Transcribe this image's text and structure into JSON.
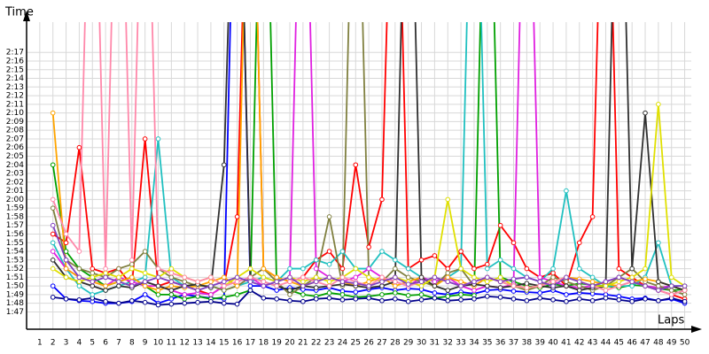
{
  "chart_data": {
    "type": "line",
    "y_label": "Time",
    "x_label": "Laps",
    "x": [
      1,
      2,
      3,
      4,
      5,
      6,
      7,
      8,
      9,
      10,
      11,
      12,
      13,
      14,
      15,
      16,
      17,
      18,
      19,
      20,
      21,
      22,
      23,
      24,
      25,
      26,
      27,
      28,
      29,
      30,
      31,
      32,
      33,
      34,
      35,
      36,
      37,
      38,
      39,
      40,
      41,
      42,
      43,
      44,
      45,
      46,
      47,
      48,
      49,
      50
    ],
    "xlim": [
      0,
      50.5
    ],
    "xticks": [
      1,
      2,
      3,
      4,
      5,
      6,
      7,
      8,
      9,
      10,
      11,
      12,
      13,
      14,
      15,
      16,
      17,
      18,
      19,
      20,
      21,
      22,
      23,
      24,
      25,
      26,
      27,
      28,
      29,
      30,
      31,
      32,
      33,
      34,
      35,
      36,
      37,
      38,
      39,
      40,
      41,
      42,
      43,
      44,
      45,
      46,
      47,
      48,
      49,
      50
    ],
    "ylim": [
      105,
      140.5
    ],
    "yticks": [
      {
        "value": 107,
        "label": "1:47"
      },
      {
        "value": 108,
        "label": "1:48"
      },
      {
        "value": 109,
        "label": "1:49"
      },
      {
        "value": 110,
        "label": "1:50"
      },
      {
        "value": 111,
        "label": "1:51"
      },
      {
        "value": 112,
        "label": "1:52"
      },
      {
        "value": 113,
        "label": "1:53"
      },
      {
        "value": 114,
        "label": "1:54"
      },
      {
        "value": 115,
        "label": "1:55"
      },
      {
        "value": 116,
        "label": "1:56"
      },
      {
        "value": 117,
        "label": "1:57"
      },
      {
        "value": 118,
        "label": "1:58"
      },
      {
        "value": 119,
        "label": "1:59"
      },
      {
        "value": 120,
        "label": "2:00"
      },
      {
        "value": 121,
        "label": "2:01"
      },
      {
        "value": 122,
        "label": "2:02"
      },
      {
        "value": 123,
        "label": "2:03"
      },
      {
        "value": 124,
        "label": "2:04"
      },
      {
        "value": 125,
        "label": "2:05"
      },
      {
        "value": 126,
        "label": "2:06"
      },
      {
        "value": 127,
        "label": "2:07"
      },
      {
        "value": 128,
        "label": "2:08"
      },
      {
        "value": 129,
        "label": "2:09"
      },
      {
        "value": 130,
        "label": "2:10"
      },
      {
        "value": 131,
        "label": "2:11"
      },
      {
        "value": 132,
        "label": "2:12"
      },
      {
        "value": 133,
        "label": "2:13"
      },
      {
        "value": 134,
        "label": "2:14"
      },
      {
        "value": 135,
        "label": "2:15"
      },
      {
        "value": 136,
        "label": "2:16"
      },
      {
        "value": 137,
        "label": "2:17"
      }
    ],
    "grid": true,
    "series": [
      {
        "color": "#0000ff",
        "values": [
          null,
          110,
          108.5,
          108.3,
          108.2,
          108,
          108,
          108.2,
          109,
          108,
          108.5,
          109,
          108.8,
          108.6,
          108.5,
          175,
          110,
          110,
          109.5,
          109.8,
          109.6,
          109.5,
          109.8,
          109.4,
          109.3,
          109.6,
          109.8,
          109.5,
          109.7,
          109.6,
          109.2,
          109,
          109.3,
          109.1,
          109.5,
          109.6,
          109.4,
          109.3,
          109.2,
          109.5,
          109.0,
          109.2,
          109.1,
          109.0,
          108.8,
          108.5,
          108.6,
          108.3,
          108.5,
          108.0
        ]
      },
      {
        "color": "#ff0000",
        "values": [
          null,
          116,
          115,
          126,
          112,
          111.5,
          112,
          110,
          127,
          110,
          110.5,
          110,
          109.5,
          109,
          110,
          118,
          175,
          112,
          111,
          110.5,
          111,
          113,
          114,
          112,
          124,
          114.5,
          120,
          175,
          112,
          113,
          113.5,
          112,
          114,
          112,
          112.5,
          117,
          115,
          112,
          111,
          111.5,
          110,
          115,
          118,
          175,
          112,
          111,
          110,
          109.5,
          109,
          108.5
        ]
      },
      {
        "color": "#00a000",
        "values": [
          null,
          124,
          114,
          112,
          111,
          110,
          110.5,
          111,
          110,
          109,
          109,
          108.5,
          108.8,
          108.5,
          108.7,
          109,
          109.5,
          175,
          110,
          109.5,
          109,
          108.8,
          109.2,
          109,
          108.7,
          108.8,
          109,
          109.2,
          108.9,
          109,
          108.6,
          108.8,
          109,
          108.9,
          175,
          111,
          110.5,
          110,
          109.8,
          110.2,
          110,
          110.3,
          110.1,
          110,
          109.8,
          110.1,
          110,
          109.7,
          109.5,
          109.6
        ]
      },
      {
        "color": "#00008b",
        "values": [
          null,
          108.7,
          108.5,
          108.4,
          108.6,
          108.2,
          108.0,
          108.3,
          108.1,
          107.8,
          107.9,
          108,
          108.1,
          108.2,
          108.0,
          107.9,
          109.5,
          108.6,
          108.5,
          108.3,
          108.2,
          108.5,
          108.6,
          108.4,
          108.5,
          108.6,
          108.3,
          108.5,
          108.2,
          108.4,
          108.6,
          108.3,
          108.4,
          108.5,
          108.8,
          108.7,
          108.5,
          108.3,
          108.6,
          108.4,
          108.2,
          108.5,
          108.3,
          108.6,
          108.4,
          108.2,
          108.5,
          108.3,
          108.6,
          108.2
        ]
      },
      {
        "color": "#20c0c0",
        "values": [
          null,
          115,
          112,
          110,
          109,
          109.5,
          110,
          110.5,
          111,
          127,
          111,
          110,
          110,
          110,
          109.5,
          110,
          110.5,
          111,
          110.5,
          112,
          112,
          113,
          112.5,
          114,
          112,
          112,
          114,
          113,
          112,
          111,
          110.5,
          111,
          112,
          175,
          112,
          113,
          112,
          111,
          110.5,
          112,
          121,
          112,
          111,
          110,
          110,
          110,
          111,
          115,
          110,
          110
        ]
      },
      {
        "color": "#e020e0",
        "values": [
          null,
          114,
          112,
          111,
          110.5,
          110,
          111,
          110.5,
          110,
          110,
          109.5,
          109,
          109.2,
          109,
          110,
          110.5,
          111,
          110,
          110.5,
          111,
          175,
          112,
          111,
          110.5,
          111,
          112,
          111,
          110.5,
          110,
          111,
          110.5,
          111,
          110,
          109.5,
          110,
          109.8,
          110.2,
          175,
          111,
          110.5,
          110,
          109.8,
          110,
          110.5,
          111,
          110.5,
          110,
          109.8,
          110,
          109.5
        ]
      },
      {
        "color": "#808040",
        "values": [
          null,
          119,
          113,
          112,
          111.5,
          111,
          112,
          112.5,
          114,
          112,
          111,
          110.5,
          110,
          110,
          109.5,
          110,
          111,
          112,
          110.5,
          109,
          110,
          111,
          118,
          110,
          175,
          111,
          110.5,
          112,
          111,
          110.5,
          110,
          111.5,
          112,
          110,
          111,
          110.5,
          110,
          109.5,
          110,
          111,
          110.5,
          110,
          109.5,
          110,
          111,
          112,
          110.5,
          110,
          109.5,
          109
        ]
      },
      {
        "color": "#ffa500",
        "values": [
          null,
          130,
          112,
          111,
          110.5,
          110,
          110.5,
          111,
          110,
          109.5,
          110,
          109.8,
          110,
          110.5,
          111,
          110,
          175,
          112,
          111,
          110.5,
          110,
          110.5,
          111,
          110.5,
          110,
          110.5,
          111,
          110,
          110.5,
          111,
          110,
          111,
          110.5,
          110,
          111,
          110.5,
          110,
          109.8,
          110,
          110.5,
          111,
          110.8,
          110.5,
          110.2,
          110,
          110.5,
          110.8,
          110.5,
          110,
          109.5
        ]
      },
      {
        "color": "#303030",
        "values": [
          null,
          113,
          111,
          110.5,
          110,
          109.5,
          110,
          109.8,
          110.5,
          110,
          109.5,
          110,
          110.2,
          109.8,
          124,
          175,
          111,
          110.5,
          110,
          109.5,
          110,
          109.8,
          110,
          110.2,
          110,
          109.8,
          110,
          110.5,
          175,
          111,
          110,
          109.5,
          110,
          110.2,
          110,
          109.8,
          110,
          110.3,
          110,
          109.8,
          110,
          109.5,
          109.8,
          110,
          175,
          112,
          130,
          110.5,
          110,
          109.5
        ]
      },
      {
        "color": "#e0e000",
        "values": [
          null,
          112,
          111,
          110.5,
          111,
          111.5,
          111,
          112,
          111.5,
          111,
          112,
          111,
          110.5,
          111,
          110,
          111,
          112,
          111,
          110.5,
          111,
          110.5,
          111,
          110.5,
          111,
          112,
          111,
          110.5,
          111,
          110.5,
          110,
          111,
          120,
          112,
          111,
          110.5,
          111,
          110,
          109.8,
          110,
          110.5,
          111,
          110.5,
          110,
          110,
          110.5,
          111,
          112,
          131,
          111,
          110
        ]
      },
      {
        "color": "#ff88aa",
        "values": [
          null,
          120,
          116,
          114,
          175,
          112,
          175,
          113,
          175,
          112,
          111.5,
          111,
          110.5,
          111,
          110,
          110.5,
          111,
          110.5,
          110,
          110.5,
          111,
          110.5,
          110,
          111,
          110.5,
          110,
          111,
          110.5,
          110,
          110.5,
          111,
          110.5,
          110,
          110.5,
          111,
          110.5,
          110,
          109.8,
          110,
          110.5,
          111,
          110.5,
          110,
          109.5,
          110,
          110.5,
          110,
          109.5,
          109,
          109.5
        ]
      },
      {
        "color": "#8040c0",
        "values": [
          null,
          117,
          113,
          111,
          110.5,
          111,
          110.5,
          110,
          110.5,
          111,
          110.5,
          110,
          109.5,
          110,
          110.5,
          111,
          110.5,
          110,
          110.5,
          111,
          110,
          110.5,
          111,
          110.5,
          110.3,
          110,
          110.5,
          111,
          110.2,
          110.5,
          111,
          110.5,
          110,
          110.5,
          111,
          110.5,
          110.8,
          111,
          110.5,
          110,
          111,
          110.5,
          110,
          110.5,
          111,
          110.5,
          110,
          109.5,
          110,
          110
        ]
      }
    ]
  }
}
